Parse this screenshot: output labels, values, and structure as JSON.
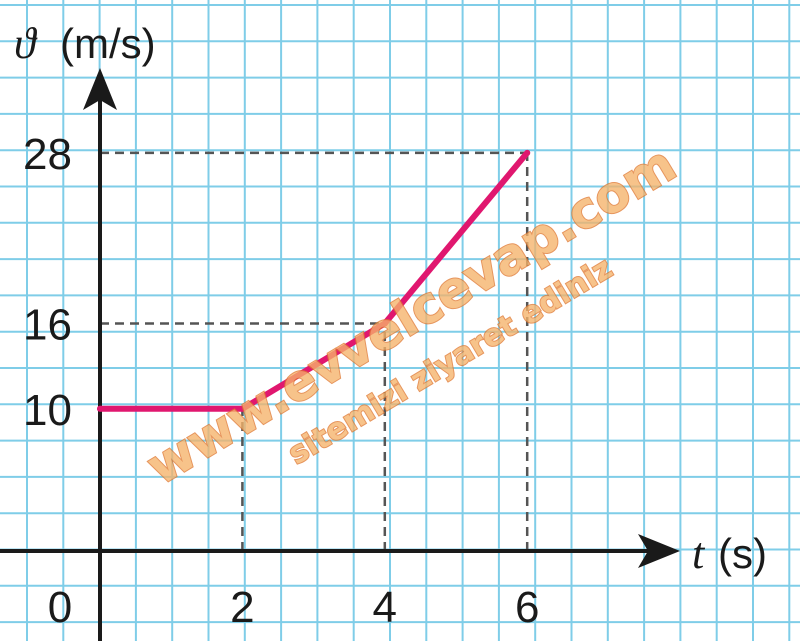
{
  "chart_data": {
    "type": "line",
    "title": "",
    "x_symbol": "t",
    "x_unit": "(s)",
    "y_symbol": "ϑ",
    "y_unit": "(m/s)",
    "origin_label": "0",
    "x_ticks": [
      "2",
      "4",
      "6"
    ],
    "y_ticks": [
      "10",
      "16",
      "28"
    ],
    "xlim": [
      0,
      8
    ],
    "ylim": [
      0,
      31
    ],
    "grid": true,
    "series": [
      {
        "x": [
          0,
          2,
          4,
          6
        ],
        "y": [
          10,
          10,
          16,
          28
        ]
      }
    ],
    "dashed_guides": [
      {
        "x": 2,
        "y": 10
      },
      {
        "x": 4,
        "y": 16
      },
      {
        "x": 6,
        "y": 28
      }
    ]
  },
  "colors": {
    "line": "#e0176f",
    "grid": "#7fcde8",
    "axis": "#1a1a1a",
    "guide": "#555555"
  },
  "watermark": {
    "main": "www.evvelcevap.com",
    "sub": "sitemizi ziyaret ediniz"
  }
}
